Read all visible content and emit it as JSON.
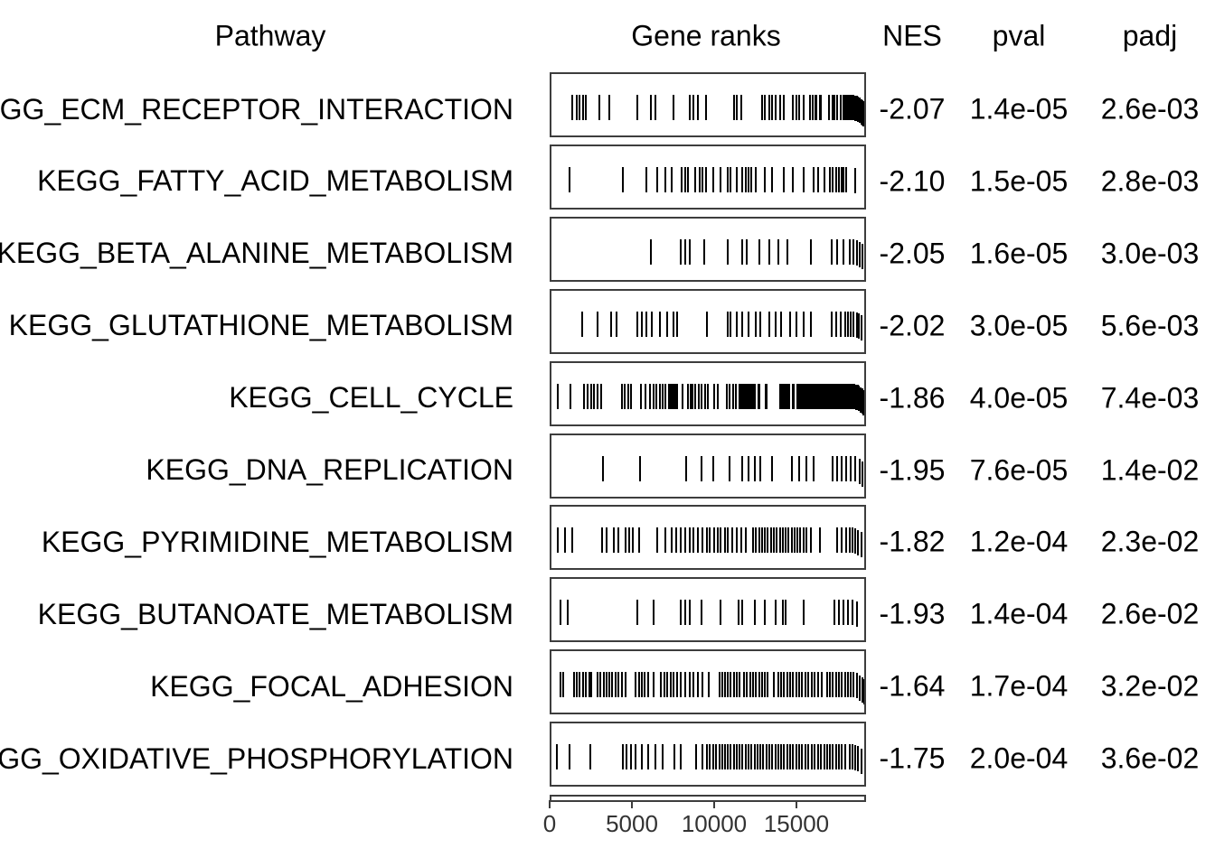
{
  "colors": {
    "background": "#ffffff",
    "text": "#000000",
    "panel_border": "#3d3d3d",
    "tick_mark": "#000000",
    "axis_text": "#333333"
  },
  "chart_data": {
    "type": "gsea_table",
    "columns": [
      "Pathway",
      "Gene ranks",
      "NES",
      "pval",
      "padj"
    ],
    "x_axis": {
      "min": 0,
      "max": 19230,
      "ticks": [
        0,
        5000,
        10000,
        15000
      ],
      "tick_labels": [
        "0",
        "5000",
        "10000",
        "15000"
      ]
    },
    "rows": [
      {
        "pathway": "KEGG_ECM_RECEPTOR_INTERACTION",
        "nes": "-2.07",
        "pval": "1.4e-05",
        "padj": "2.6e-03",
        "gene_ranks": [
          1270,
          1560,
          1730,
          1920,
          2100,
          2920,
          3560,
          5290,
          6110,
          6380,
          7480,
          8480,
          8750,
          9020,
          9480,
          11210,
          11380,
          11670,
          12940,
          13120,
          13400,
          13580,
          13770,
          14040,
          14310,
          14860,
          15040,
          15210,
          15500,
          15870,
          16040,
          16210,
          16310,
          16500,
          16580,
          17040,
          17310,
          17400,
          17590,
          17770,
          17960,
          18040,
          18130,
          18230,
          18330,
          18400,
          18500,
          18590,
          18690,
          18770,
          18860,
          18960,
          19040,
          19130,
          19190
        ]
      },
      {
        "pathway": "KEGG_FATTY_ACID_METABOLISM",
        "nes": "-2.10",
        "pval": "1.5e-05",
        "padj": "2.8e-03",
        "gene_ranks": [
          1100,
          4370,
          5830,
          6480,
          7020,
          7380,
          8020,
          8210,
          8390,
          8850,
          9110,
          9290,
          9480,
          9940,
          10390,
          10850,
          11020,
          11380,
          11750,
          11930,
          12120,
          12300,
          12580,
          13120,
          13580,
          14310,
          14860,
          15500,
          16130,
          16400,
          16770,
          17130,
          17310,
          17500,
          17680,
          17860,
          17960,
          18130,
          18690
        ]
      },
      {
        "pathway": "KEGG_BETA_ALANINE_METABOLISM",
        "nes": "-2.05",
        "pval": "1.6e-05",
        "padj": "3.0e-03",
        "gene_ranks": [
          6110,
          7930,
          8210,
          8480,
          9390,
          10850,
          11750,
          12030,
          12760,
          13400,
          13940,
          14490,
          15950,
          17220,
          17590,
          17960,
          18330,
          18590,
          18770,
          18960,
          19100
        ]
      },
      {
        "pathway": "KEGG_GLUTATHIONE_METABOLISM",
        "nes": "-2.02",
        "pval": "3.0e-05",
        "padj": "5.6e-03",
        "gene_ranks": [
          1910,
          2830,
          3650,
          4020,
          5290,
          5560,
          5830,
          6190,
          6650,
          7110,
          7480,
          7750,
          9580,
          10850,
          11020,
          11380,
          11750,
          12120,
          12580,
          12850,
          13400,
          13770,
          14130,
          14670,
          15040,
          15500,
          15950,
          17220,
          17500,
          17770,
          18040,
          18230,
          18400,
          18590,
          18770,
          18900,
          19040
        ]
      },
      {
        "pathway": "KEGG_CELL_CYCLE",
        "nes": "-1.86",
        "pval": "4.0e-05",
        "padj": "7.4e-03",
        "gene_ranks": [
          365,
          1190,
          2000,
          2210,
          2420,
          2630,
          2840,
          3050,
          4330,
          4520,
          4710,
          4900,
          5480,
          5770,
          6060,
          6260,
          6450,
          6650,
          6840,
          7030,
          7230,
          7330,
          7420,
          7520,
          7620,
          7710,
          8080,
          8380,
          8560,
          8660,
          8850,
          9050,
          9240,
          9440,
          9630,
          10000,
          10200,
          10760,
          10960,
          11150,
          11350,
          11540,
          11640,
          11730,
          11830,
          11930,
          12020,
          12120,
          12210,
          12310,
          12400,
          12500,
          12700,
          12790,
          13150,
          13250,
          14060,
          14150,
          14250,
          14350,
          14440,
          14540,
          14630,
          14830,
          14920,
          15120,
          15210,
          15310,
          15400,
          15500,
          15600,
          15700,
          15790,
          15890,
          15990,
          16080,
          16180,
          16280,
          16380,
          16470,
          16570,
          16670,
          16770,
          16870,
          16960,
          17060,
          17160,
          17260,
          17360,
          17450,
          17550,
          17650,
          17750,
          17850,
          17940,
          18040,
          18140,
          18240,
          18340,
          18430,
          18530,
          18630,
          18730,
          18830,
          18920,
          19020,
          19120,
          19190
        ]
      },
      {
        "pathway": "KEGG_DNA_REPLICATION",
        "nes": "-1.95",
        "pval": "7.6e-05",
        "padj": "1.4e-02",
        "gene_ranks": [
          3150,
          5420,
          8290,
          9210,
          9940,
          10940,
          11750,
          12120,
          12480,
          12850,
          13580,
          14770,
          15210,
          15670,
          16130,
          17310,
          17590,
          17860,
          18130,
          18400,
          18690,
          18960,
          19130
        ]
      },
      {
        "pathway": "KEGG_PYRIMIDINE_METABOLISM",
        "nes": "-1.82",
        "pval": "1.2e-04",
        "padj": "2.3e-02",
        "gene_ranks": [
          365,
          830,
          1270,
          3100,
          3370,
          3830,
          4100,
          4560,
          4790,
          5020,
          5380,
          6480,
          7020,
          7380,
          7650,
          7930,
          8210,
          8480,
          8750,
          9020,
          9290,
          9580,
          9750,
          10020,
          10210,
          10390,
          10650,
          10850,
          11110,
          11380,
          11670,
          11930,
          12400,
          12580,
          12760,
          12940,
          13120,
          13310,
          13480,
          13670,
          13850,
          14040,
          14210,
          14400,
          14580,
          14770,
          14940,
          15130,
          15310,
          15500,
          15670,
          15950,
          16500,
          17590,
          17860,
          18130,
          18330,
          18500,
          18690,
          18860,
          19040
        ]
      },
      {
        "pathway": "KEGG_BUTANOATE_METABOLISM",
        "nes": "-1.93",
        "pval": "1.4e-04",
        "padj": "2.6e-02",
        "gene_ranks": [
          540,
          1000,
          5290,
          6290,
          7930,
          8210,
          8480,
          9210,
          10390,
          11480,
          11750,
          12480,
          13120,
          13770,
          14210,
          14400,
          15500,
          17400,
          17680,
          17960,
          18230,
          18500,
          18770
        ]
      },
      {
        "pathway": "KEGG_FOCAL_ADHESION",
        "nes": "-1.64",
        "pval": "1.7e-04",
        "padj": "3.2e-02",
        "gene_ranks": [
          540,
          750,
          1370,
          1560,
          1740,
          1930,
          2120,
          2310,
          2460,
          2830,
          3020,
          3210,
          3400,
          3560,
          3750,
          3940,
          4130,
          4330,
          4560,
          5190,
          5380,
          5560,
          5750,
          5940,
          6290,
          6750,
          6940,
          7130,
          7330,
          7520,
          7710,
          7930,
          8210,
          8480,
          8750,
          9020,
          9290,
          9650,
          10310,
          10500,
          10690,
          10850,
          11020,
          11210,
          11380,
          11570,
          11850,
          12030,
          12210,
          12400,
          12580,
          12760,
          12940,
          13120,
          13310,
          13670,
          13940,
          14130,
          14310,
          14490,
          14670,
          14860,
          15040,
          15210,
          15400,
          15600,
          15790,
          15990,
          16180,
          16380,
          16600,
          16940,
          17130,
          17310,
          17500,
          17680,
          17860,
          18040,
          18230,
          18400,
          18590,
          18770,
          18960,
          19130,
          19210
        ]
      },
      {
        "pathway": "KEGG_OXIDATIVE_PHOSPHORYLATION",
        "nes": "-1.75",
        "pval": "2.0e-04",
        "padj": "3.6e-02",
        "gene_ranks": [
          310,
          1100,
          2370,
          4370,
          4640,
          4900,
          5190,
          5560,
          5920,
          6380,
          6830,
          7560,
          7930,
          8920,
          9290,
          9580,
          9750,
          9940,
          10120,
          10310,
          10500,
          10690,
          10850,
          11020,
          11210,
          11380,
          11570,
          11750,
          11930,
          12120,
          12300,
          12480,
          12670,
          12850,
          13030,
          13210,
          13400,
          13580,
          13770,
          13940,
          14130,
          14310,
          14490,
          14670,
          14860,
          15040,
          15210,
          15400,
          15600,
          15790,
          15990,
          16180,
          16380,
          16570,
          16770,
          16960,
          17130,
          17310,
          17500,
          17680,
          17860,
          18040,
          18330,
          18500,
          18690,
          18860,
          19040
        ]
      }
    ]
  }
}
